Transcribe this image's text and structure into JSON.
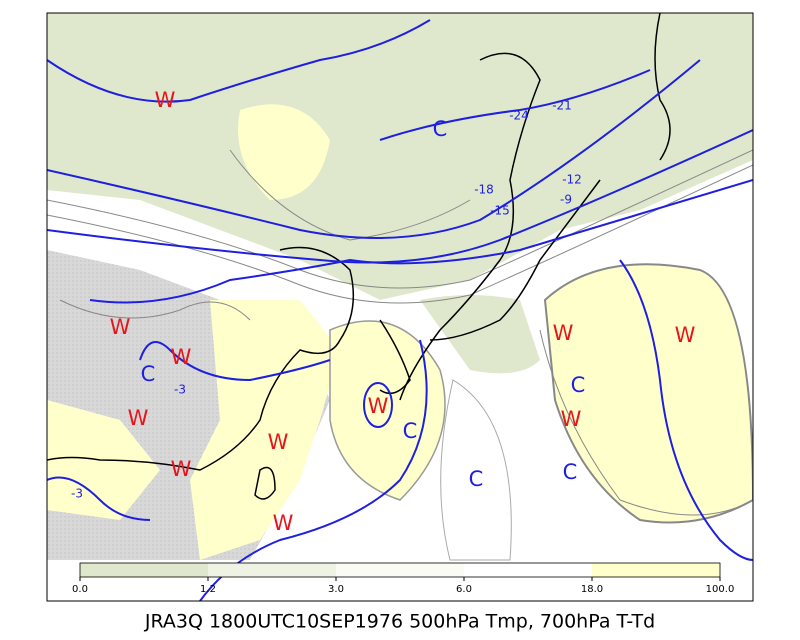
{
  "title": "JRA3Q 1800UTC10SEP1976 500hPa Tmp, 700hPa T-Td",
  "colorbar": {
    "ticks": [
      {
        "value": 0,
        "label": "0.0"
      },
      {
        "value": 1.2,
        "label": "1.2"
      },
      {
        "value": 3,
        "label": "3.0"
      },
      {
        "value": 6,
        "label": "6.0"
      },
      {
        "value": 18,
        "label": "18.0"
      },
      {
        "value": 100,
        "label": "100.0"
      }
    ]
  },
  "markers": [
    "W",
    "W",
    "W",
    "C",
    "W",
    "W",
    "W",
    "C",
    "W",
    "W",
    "W",
    "C",
    "W",
    "C",
    "C",
    "W",
    "C"
  ],
  "contour_labels": [
    -24,
    -21,
    -18,
    -15,
    -12,
    -9,
    -3,
    -3
  ]
}
